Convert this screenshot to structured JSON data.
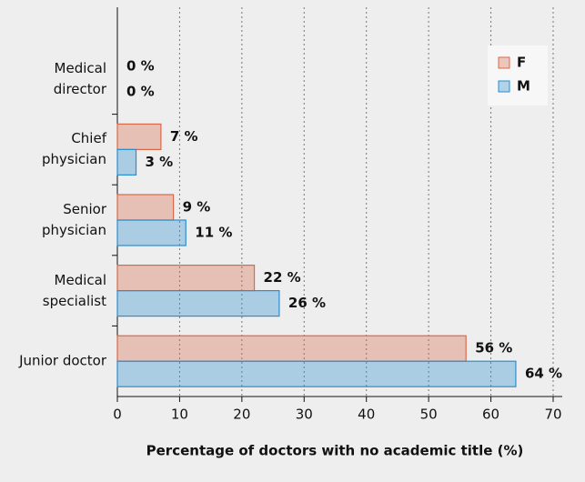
{
  "chart_data": {
    "type": "barh",
    "categories": [
      "Medical director",
      "Chief physician",
      "Senior physician",
      "Medical specialist",
      "Junior doctor"
    ],
    "series": [
      {
        "name": "F",
        "color": "#d9694a",
        "values": [
          0,
          7,
          9,
          22,
          56
        ],
        "value_labels": [
          "0 %",
          "7 %",
          "9 %",
          "22 %",
          "56 %"
        ]
      },
      {
        "name": "M",
        "color": "#2a8ed0",
        "values": [
          0,
          3,
          11,
          26,
          64
        ],
        "value_labels": [
          "0 %",
          "3 %",
          "11 %",
          "26 %",
          "64 %"
        ]
      }
    ],
    "xlabel": "Percentage of doctors with no academic title (%)",
    "xlim": [
      0,
      70
    ],
    "xticks": [
      0,
      10,
      20,
      30,
      40,
      50,
      60,
      70
    ],
    "grid": true,
    "legend": "upper right"
  }
}
